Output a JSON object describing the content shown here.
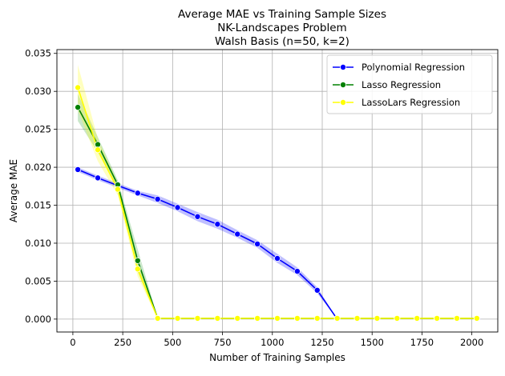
{
  "chart_data": {
    "type": "line",
    "title_lines": [
      "Average MAE vs Training Sample Sizes",
      "NK-Landscapes Problem",
      "Walsh Basis (n=50, k=2)"
    ],
    "xlabel": "Number of Training Samples",
    "ylabel": "Average MAE",
    "xlim": [
      -80,
      2130
    ],
    "ylim": [
      -0.0017,
      0.0355
    ],
    "x_ticks": [
      0,
      250,
      500,
      750,
      1000,
      1250,
      1500,
      1750,
      2000
    ],
    "x_tick_labels": [
      "0",
      "250",
      "500",
      "750",
      "1000",
      "1250",
      "1500",
      "1750",
      "2000"
    ],
    "y_ticks": [
      0,
      0.005,
      0.01,
      0.015,
      0.02,
      0.025,
      0.03,
      0.035
    ],
    "y_tick_labels": [
      "0.000",
      "0.005",
      "0.010",
      "0.015",
      "0.020",
      "0.025",
      "0.030",
      "0.035"
    ],
    "grid": true,
    "legend_position": "top-right",
    "series": [
      {
        "name": "Polynomial Regression",
        "color": "#0000ff",
        "band_color": "#0000ff",
        "x": [
          25,
          125,
          225,
          325,
          425,
          525,
          625,
          725,
          825,
          925,
          1025,
          1125,
          1225,
          1325
        ],
        "y": [
          0.0197,
          0.0186,
          0.0176,
          0.0166,
          0.0158,
          0.0147,
          0.0135,
          0.0125,
          0.0112,
          0.0099,
          0.008,
          0.0063,
          0.0038,
          0.0
        ],
        "band": [
          0.0003,
          0.0003,
          0.0003,
          0.0003,
          0.0005,
          0.0005,
          0.0006,
          0.0006,
          0.0005,
          0.0005,
          0.0006,
          0.0005,
          0.0004,
          0.0
        ],
        "markers_x": [
          25,
          125,
          225,
          325,
          425,
          525,
          625,
          725,
          825,
          925,
          1025,
          1125,
          1225
        ]
      },
      {
        "name": "Lasso Regression",
        "color": "#008000",
        "band_color": "#2ca02c",
        "x": [
          25,
          125,
          225,
          325,
          425,
          525,
          625,
          725,
          825,
          925,
          1025,
          1125,
          1225,
          1325,
          1425,
          1525,
          1625,
          1725,
          1825,
          1925,
          2025
        ],
        "y": [
          0.0279,
          0.023,
          0.0177,
          0.0077,
          0.0001,
          0.0001,
          0.0001,
          0.0001,
          0.0001,
          0.0001,
          0.0001,
          0.0001,
          0.0001,
          0.0001,
          0.0001,
          0.0001,
          0.0001,
          0.0001,
          0.0001,
          0.0001,
          0.0001
        ],
        "band": [
          0.0018,
          0.001,
          0.0006,
          0.0015,
          0.0001,
          0,
          0,
          0,
          0,
          0,
          0,
          0,
          0,
          0,
          0,
          0,
          0,
          0,
          0,
          0,
          0
        ],
        "markers_x": [
          25,
          125,
          225,
          325,
          425,
          525,
          625,
          725,
          825,
          925,
          1025,
          1125,
          1225,
          1325,
          1425,
          1525,
          1625,
          1725,
          1825,
          1925,
          2025
        ]
      },
      {
        "name": "LassoLars Regression",
        "color": "#ffff00",
        "band_color": "#ffff00",
        "x": [
          25,
          125,
          225,
          325,
          425,
          525,
          625,
          725,
          825,
          925,
          1025,
          1125,
          1225,
          1325,
          1425,
          1525,
          1625,
          1725,
          1825,
          1925,
          2025
        ],
        "y": [
          0.0305,
          0.0223,
          0.0171,
          0.0066,
          0.0001,
          0.0001,
          0.0001,
          0.0001,
          0.0001,
          0.0001,
          0.0001,
          0.0001,
          0.0001,
          0.0001,
          0.0001,
          0.0001,
          0.0001,
          0.0001,
          0.0001,
          0.0001,
          0.0001
        ],
        "band": [
          0.003,
          0.0015,
          0.0008,
          0.001,
          0.0001,
          0,
          0,
          0,
          0,
          0,
          0,
          0,
          0,
          0,
          0,
          0,
          0,
          0,
          0,
          0,
          0
        ],
        "markers_x": [
          25,
          125,
          225,
          325,
          425,
          525,
          625,
          725,
          825,
          925,
          1025,
          1125,
          1225,
          1325,
          1425,
          1525,
          1625,
          1725,
          1825,
          1925,
          2025
        ]
      }
    ]
  }
}
